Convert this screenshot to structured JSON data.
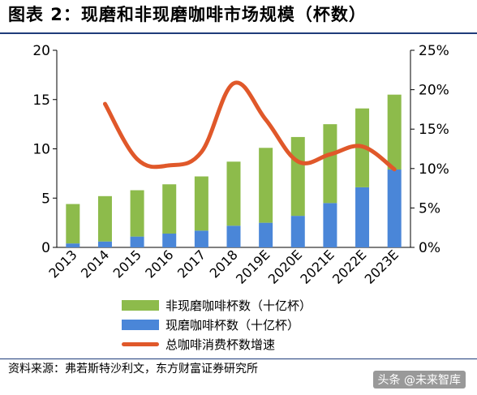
{
  "title": "图表 2：现磨和非现磨咖啡市场规模（杯数）",
  "source": "资料来源：弗若斯特沙利文，东方财富证券研究所",
  "watermark": "头条 @未来智库",
  "chart_data": {
    "type": "bar",
    "stacked": true,
    "categories": [
      "2013",
      "2014",
      "2015",
      "2016",
      "2017",
      "2018",
      "2019E",
      "2020E",
      "2021E",
      "2022E",
      "2023E"
    ],
    "series": [
      {
        "name": "现磨咖啡杯数（十亿杯）",
        "type": "bar",
        "axis": "left",
        "color": "#4a86d8",
        "values": [
          0.4,
          0.6,
          1.1,
          1.4,
          1.7,
          2.2,
          2.5,
          3.2,
          4.5,
          6.1,
          7.9
        ]
      },
      {
        "name": "非现磨咖啡杯数（十亿杯）",
        "type": "bar",
        "axis": "left",
        "color": "#8dbb4b",
        "values": [
          4.0,
          4.6,
          4.7,
          5.0,
          5.5,
          6.5,
          7.6,
          8.0,
          8.0,
          8.0,
          7.6
        ]
      },
      {
        "name": "总咖啡消费杯数增速",
        "type": "line",
        "axis": "right",
        "color": "#e0582a",
        "values": [
          null,
          18.2,
          11.2,
          10.4,
          12.1,
          20.8,
          16.2,
          10.9,
          11.8,
          12.8,
          9.9
        ]
      }
    ],
    "y_left": {
      "min": 0,
      "max": 20,
      "ticks": [
        0,
        5,
        10,
        15,
        20
      ]
    },
    "y_right": {
      "min": 0,
      "max": 25,
      "ticks": [
        "0%",
        "5%",
        "10%",
        "15%",
        "20%",
        "25%"
      ]
    },
    "legend_position": "bottom"
  }
}
